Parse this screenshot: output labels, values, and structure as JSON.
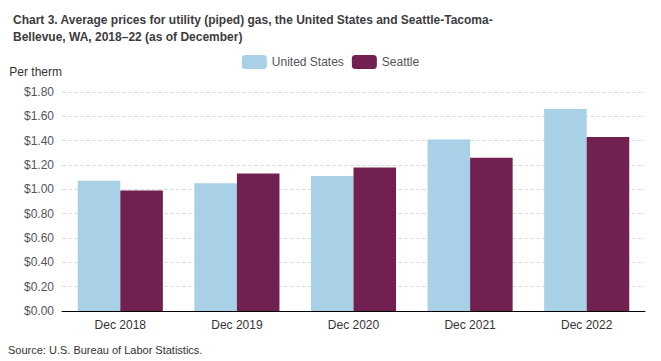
{
  "chart_data": {
    "type": "bar",
    "title": "Chart 3. Average prices for utility (piped) gas, the United States and Seattle-Tacoma-\nBellevue, WA, 2018–22 (as of December)",
    "ylabel": "Per therm",
    "annotations": [
      "Source: U.S. Bureau of Labor Statistics."
    ],
    "categories": [
      "Dec 2018",
      "Dec 2019",
      "Dec 2020",
      "Dec 2021",
      "Dec 2022"
    ],
    "series": [
      {
        "name": "United States",
        "color": "#a8d0e6",
        "values": [
          1.07,
          1.05,
          1.11,
          1.41,
          1.66
        ]
      },
      {
        "name": "Seattle",
        "color": "#722050",
        "values": [
          0.99,
          1.13,
          1.18,
          1.26,
          1.43
        ]
      }
    ],
    "ylim": [
      0.0,
      1.8
    ],
    "yticks": [
      {
        "value": 0.0,
        "label": "$0.00"
      },
      {
        "value": 0.2,
        "label": "$0.20"
      },
      {
        "value": 0.4,
        "label": "$0.40"
      },
      {
        "value": 0.6,
        "label": "$0.60"
      },
      {
        "value": 0.8,
        "label": "$0.80"
      },
      {
        "value": 1.0,
        "label": "$1.00"
      },
      {
        "value": 1.2,
        "label": "$1.20"
      },
      {
        "value": 1.4,
        "label": "$1.40"
      },
      {
        "value": 1.6,
        "label": "$1.60"
      },
      {
        "value": 1.8,
        "label": "$1.80"
      }
    ],
    "grid": true,
    "legend": "top"
  }
}
